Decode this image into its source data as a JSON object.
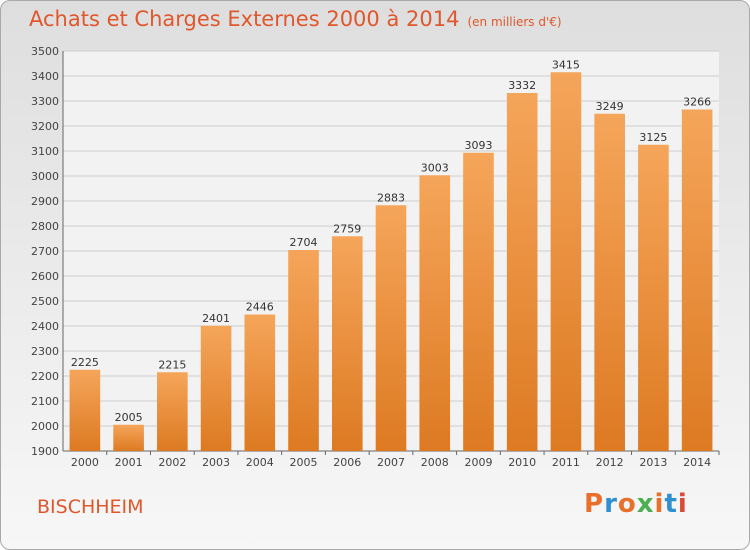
{
  "header": {
    "title": "Achats et Charges Externes 2000 à 2014",
    "subtitle": "(en milliers d'€)"
  },
  "footer": {
    "place": "BISCHHEIM",
    "logo": "Proxiti"
  },
  "colors": {
    "accent": "#e0572c",
    "bar_top": "#f5a55a",
    "bar_bottom": "#dd7a22",
    "logo_letters": [
      "#e8702a",
      "#2f8fd0",
      "#e8702a",
      "#4caf50",
      "#e8702a",
      "#2f8fd0",
      "#d84a3a"
    ]
  },
  "chart_data": {
    "type": "bar",
    "title": "Achats et Charges Externes 2000 à 2014",
    "subtitle": "(en milliers d'€)",
    "xlabel": "",
    "ylabel": "",
    "categories": [
      "2000",
      "2001",
      "2002",
      "2003",
      "2004",
      "2005",
      "2006",
      "2007",
      "2008",
      "2009",
      "2010",
      "2011",
      "2012",
      "2013",
      "2014"
    ],
    "values": [
      2225,
      2005,
      2215,
      2401,
      2446,
      2704,
      2759,
      2883,
      3003,
      3093,
      3332,
      3415,
      3249,
      3125,
      3266
    ],
    "ylim": [
      1900,
      3500
    ],
    "yticks": [
      1900,
      2000,
      2100,
      2200,
      2300,
      2400,
      2500,
      2600,
      2700,
      2800,
      2900,
      3000,
      3100,
      3200,
      3300,
      3400,
      3500
    ],
    "grid": true,
    "data_labels": true
  }
}
